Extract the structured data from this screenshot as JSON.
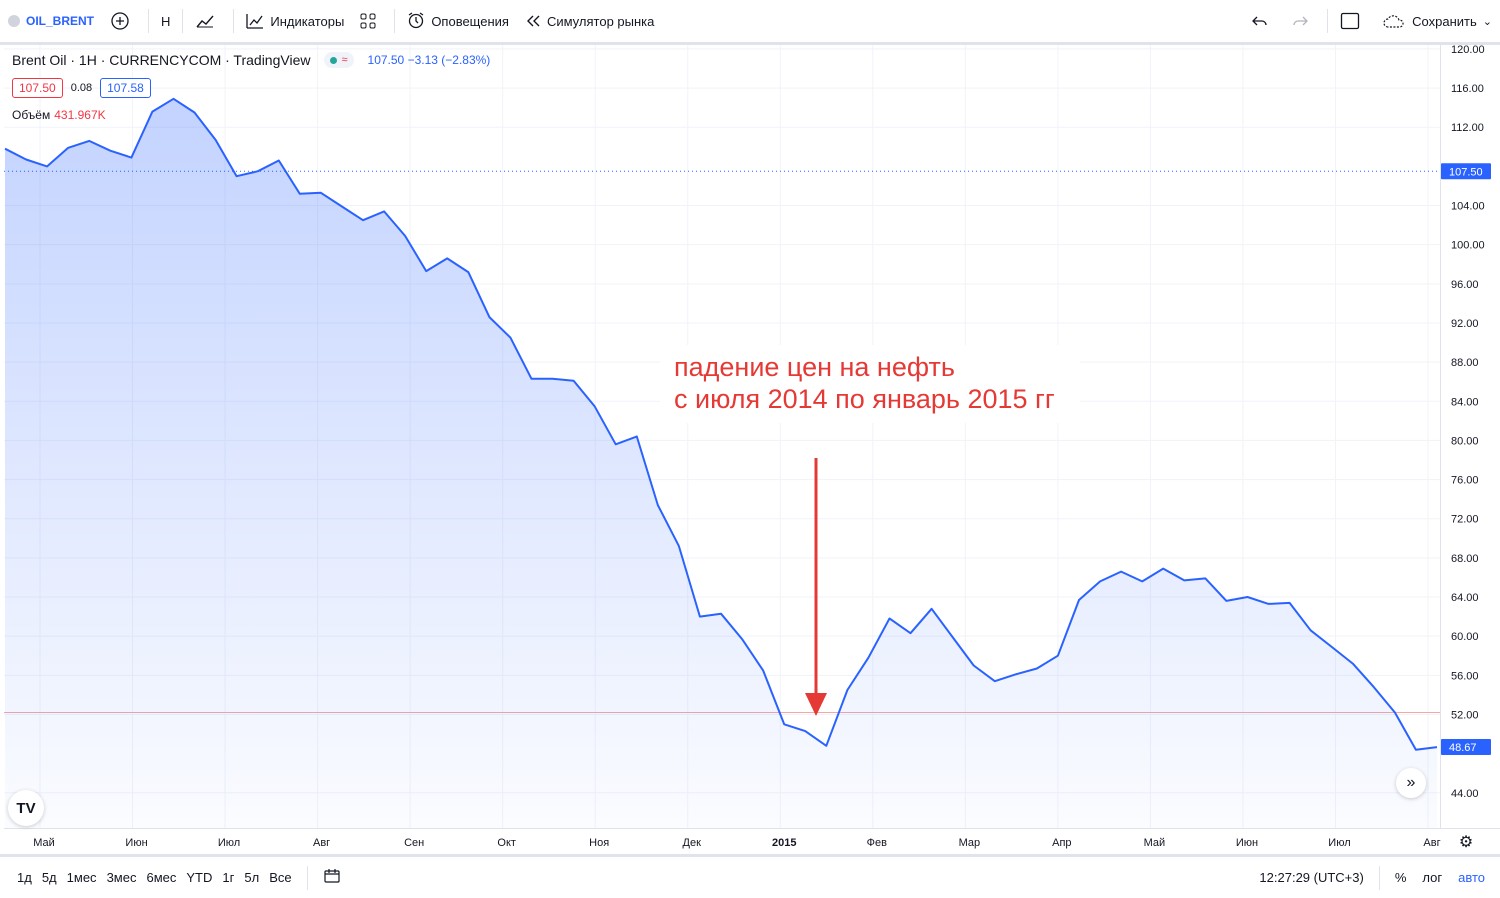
{
  "toolbar": {
    "symbol": "OIL_BRENT",
    "interval": "H",
    "indicators": "Индикаторы",
    "alerts": "Оповещения",
    "replay": "Симулятор рынка",
    "save": "Сохранить"
  },
  "legend": {
    "title": "Brent Oil · 1H · CURRENCYCOM · TradingView",
    "values": "107.50  −3.13 (−2.83%)",
    "sell": "107.50",
    "spread": "0.08",
    "buy": "107.58",
    "volume_label": "Объём",
    "volume_value": "431.967K"
  },
  "annotation": {
    "line1": "падение цен на нефть",
    "line2": "с июля 2014 по январь 2015 гг"
  },
  "bottom": {
    "ranges": [
      "1д",
      "5д",
      "1мес",
      "3мес",
      "6мес",
      "YTD",
      "1г",
      "5л",
      "Все"
    ],
    "time": "12:27:29 (UTC+3)",
    "percent": "%",
    "log": "лог",
    "auto": "авто"
  },
  "colors": {
    "line": "#2962ff",
    "annotation": "#e53935",
    "accent": "#2962ff"
  },
  "chart_data": {
    "type": "area",
    "title": "Brent Oil · 1H · CURRENCYCOM · TradingView",
    "x_ticks": [
      "Май",
      "Июн",
      "Июл",
      "Авг",
      "Сен",
      "Окт",
      "Ноя",
      "Дек",
      "2015",
      "Фев",
      "Мар",
      "Апр",
      "Май",
      "Июн",
      "Июл",
      "Авг"
    ],
    "y_ticks": [
      "120.00",
      "116.00",
      "112.00",
      "104.00",
      "100.00",
      "96.00",
      "92.00",
      "88.00",
      "84.00",
      "80.00",
      "76.00",
      "72.00",
      "68.00",
      "64.00",
      "60.00",
      "56.00",
      "52.00",
      "44.00"
    ],
    "ylim": [
      40.4,
      120.4
    ],
    "current_price_label": "107.50",
    "last_price_label": "48.67",
    "series": [
      {
        "values": [
          109.8,
          108.7,
          108.0,
          109.9,
          110.6,
          109.6,
          108.9,
          113.6,
          114.9,
          113.5,
          110.7,
          107.0,
          107.5,
          108.6,
          105.2,
          105.3,
          103.9,
          102.5,
          103.4,
          100.9,
          97.3,
          98.6,
          97.2,
          92.6,
          90.5,
          86.3,
          86.3,
          86.1,
          83.5,
          79.6,
          80.4,
          73.4,
          69.2,
          62.0,
          62.3,
          59.7,
          56.5,
          51.0,
          50.3,
          48.8,
          54.5,
          57.8,
          61.8,
          60.3,
          62.8,
          59.9,
          57.0,
          55.4,
          56.1,
          56.7,
          58.0,
          63.7,
          65.6,
          66.6,
          65.6,
          66.9,
          65.7,
          65.9,
          63.6,
          64.0,
          63.3,
          63.4,
          60.6,
          58.9,
          57.2,
          54.8,
          52.2,
          48.4,
          48.67
        ]
      }
    ],
    "reference_lines": [
      107.5,
      52.2
    ]
  }
}
